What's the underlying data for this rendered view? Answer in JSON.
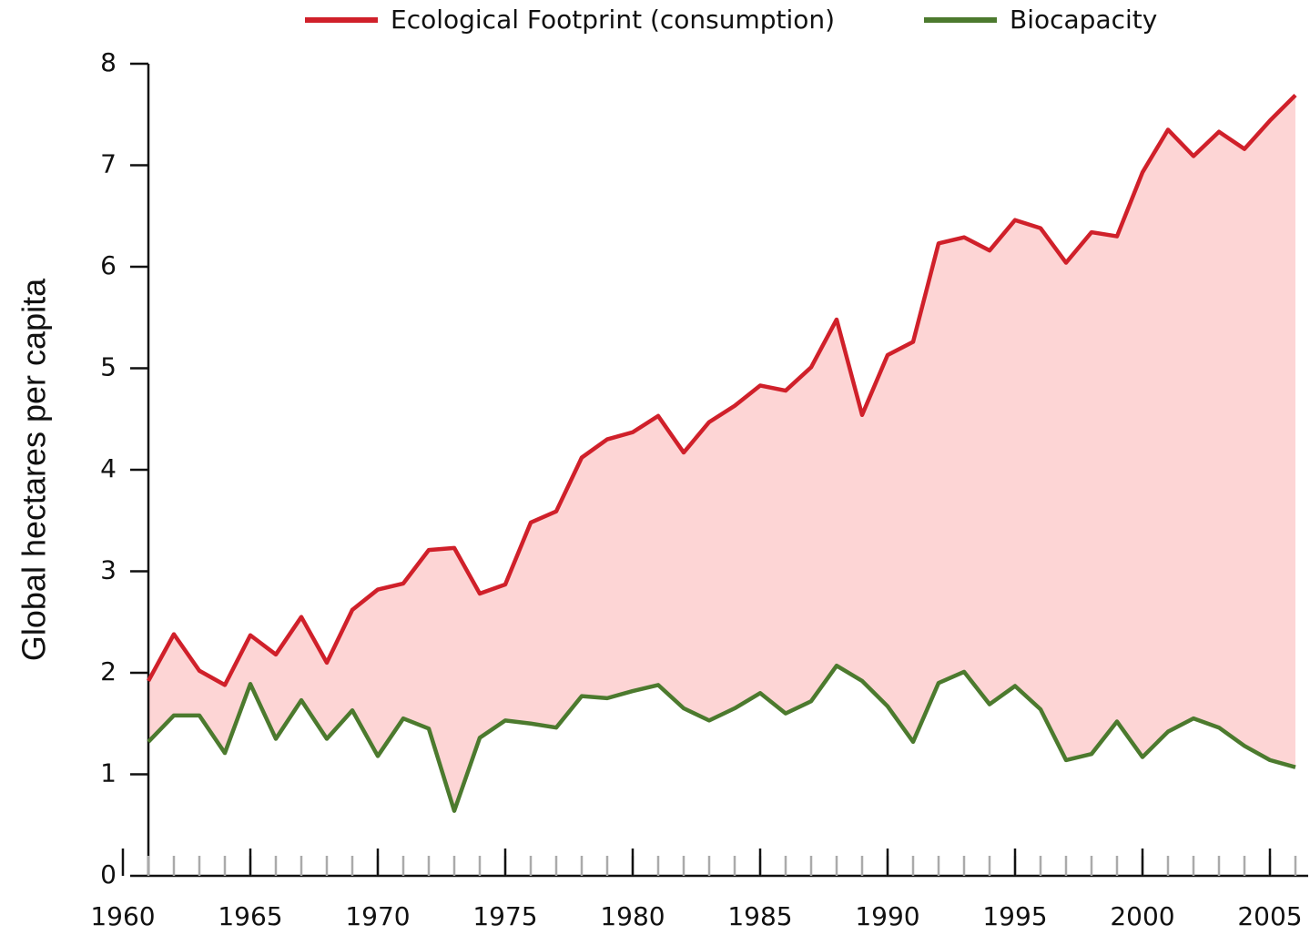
{
  "chart_data": {
    "type": "line",
    "y_label": "Global hectares per capita",
    "x": [
      1961,
      1962,
      1963,
      1964,
      1965,
      1966,
      1967,
      1968,
      1969,
      1970,
      1971,
      1972,
      1973,
      1974,
      1975,
      1976,
      1977,
      1978,
      1979,
      1980,
      1981,
      1982,
      1983,
      1984,
      1985,
      1986,
      1987,
      1988,
      1989,
      1990,
      1991,
      1992,
      1993,
      1994,
      1995,
      1996,
      1997,
      1998,
      1999,
      2000,
      2001,
      2002,
      2003,
      2004,
      2005,
      2006
    ],
    "series": [
      {
        "name": "Ecological Footprint (consumption)",
        "color": "#d0202a",
        "values": [
          1.92,
          2.38,
          2.02,
          1.88,
          2.37,
          2.18,
          2.55,
          2.1,
          2.62,
          2.82,
          2.88,
          3.21,
          3.23,
          2.78,
          2.87,
          3.48,
          3.59,
          4.12,
          4.3,
          4.37,
          4.53,
          4.17,
          4.47,
          4.63,
          4.83,
          4.78,
          5.01,
          5.48,
          4.54,
          5.13,
          5.26,
          6.23,
          6.29,
          6.16,
          6.46,
          6.38,
          6.04,
          6.34,
          6.3,
          6.93,
          7.35,
          7.09,
          7.33,
          7.16,
          7.44,
          7.69
        ]
      },
      {
        "name": "Biocapacity",
        "color": "#4c7a2e",
        "values": [
          1.32,
          1.58,
          1.58,
          1.21,
          1.89,
          1.35,
          1.73,
          1.35,
          1.63,
          1.18,
          1.55,
          1.45,
          0.64,
          1.36,
          1.53,
          1.5,
          1.46,
          1.77,
          1.75,
          1.82,
          1.88,
          1.65,
          1.53,
          1.65,
          1.8,
          1.6,
          1.72,
          2.07,
          1.92,
          1.67,
          1.32,
          1.9,
          2.01,
          1.69,
          1.87,
          1.64,
          1.14,
          1.2,
          1.52,
          1.17,
          1.42,
          1.55,
          1.46,
          1.28,
          1.14,
          1.07
        ]
      }
    ],
    "fill_between_color": "#fdd5d5",
    "xlim": [
      1960,
      2006.5
    ],
    "xticks": [
      1960,
      1965,
      1970,
      1975,
      1980,
      1985,
      1990,
      1995,
      2000,
      2005
    ],
    "ylim": [
      0,
      8
    ],
    "yticks": [
      0,
      1,
      2,
      3,
      4,
      5,
      6,
      7,
      8
    ],
    "legend": "top"
  }
}
